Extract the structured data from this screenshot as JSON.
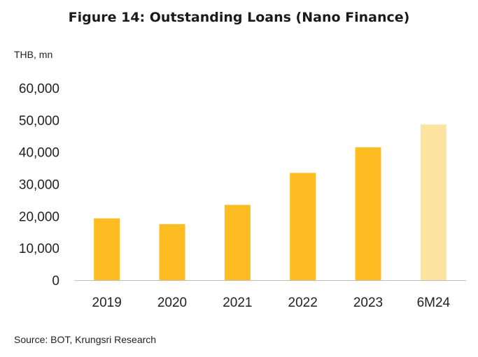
{
  "chart_data": {
    "type": "bar",
    "title": "Figure 14: Outstanding Loans (Nano Finance)",
    "unit_label": "THB, mn",
    "source": "Source: BOT, Krungsri Research",
    "categories": [
      "2019",
      "2020",
      "2021",
      "2022",
      "2023",
      "6M24"
    ],
    "values": [
      19300,
      17500,
      23500,
      33500,
      41500,
      48600
    ],
    "ylim": [
      0,
      60000
    ],
    "yticks": [
      0,
      10000,
      20000,
      30000,
      40000,
      50000,
      60000
    ],
    "ytick_labels": [
      "0",
      "10,000",
      "20,000",
      "30,000",
      "40,000",
      "50,000",
      "60,000"
    ],
    "bar_colors": [
      "#FDBD22",
      "#FDBD22",
      "#FDBD22",
      "#FDBD22",
      "#FDBD22",
      "#FDE3A0"
    ],
    "grid": false,
    "legend": "none"
  }
}
